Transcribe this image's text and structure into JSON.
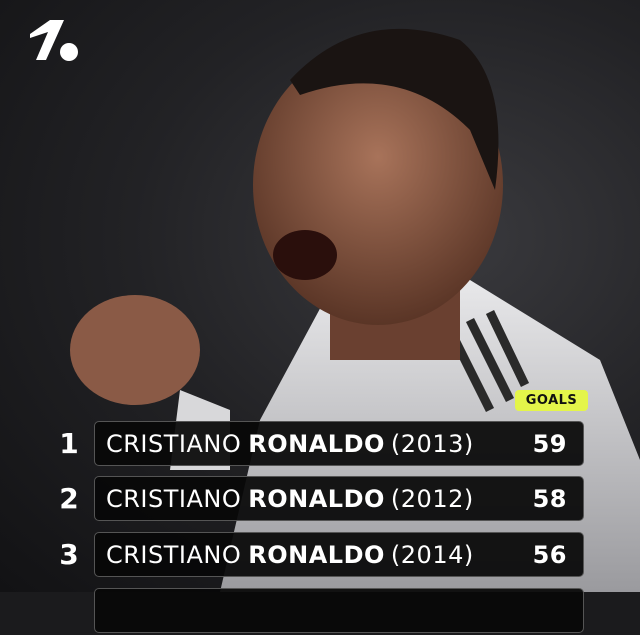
{
  "brand": {
    "logo": "OneFootball-style '1.' logo"
  },
  "header_label": "GOALS",
  "colors": {
    "accent": "#e4f54a",
    "row_bg": "#080808",
    "text": "#ffffff"
  },
  "rows": [
    {
      "rank": "1",
      "first": "CRISTIANO",
      "last": "RONALDO",
      "year": "(2013)",
      "goals": "59"
    },
    {
      "rank": "2",
      "first": "CRISTIANO",
      "last": "RONALDO",
      "year": "(2012)",
      "goals": "58"
    },
    {
      "rank": "3",
      "first": "CRISTIANO",
      "last": "RONALDO",
      "year": "(2014)",
      "goals": "56"
    }
  ]
}
